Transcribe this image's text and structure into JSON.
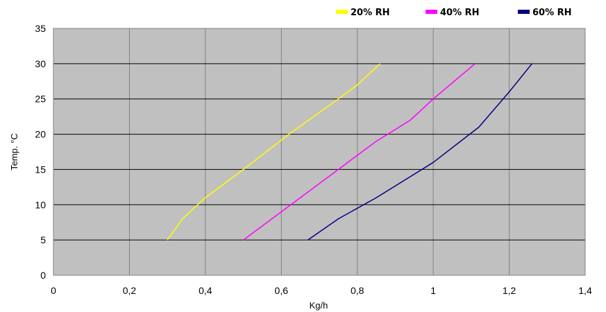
{
  "chart_data": {
    "type": "line",
    "title": "",
    "xlabel": "Kg/h",
    "ylabel": "Temp. °C",
    "xlim": [
      0,
      1.4
    ],
    "ylim": [
      0,
      35
    ],
    "x_ticks": [
      0,
      0.2,
      0.4,
      0.6,
      0.8,
      1,
      1.2,
      1.4
    ],
    "x_tick_labels": [
      "0",
      "0,2",
      "0,4",
      "0,6",
      "0,8",
      "1",
      "1,2",
      "1,4"
    ],
    "y_ticks": [
      0,
      5,
      10,
      15,
      20,
      25,
      30,
      35
    ],
    "y_tick_labels": [
      "0",
      "5",
      "10",
      "15",
      "20",
      "25",
      "30",
      "35"
    ],
    "grid": true,
    "plot_background": "#c0c0c0",
    "legend_position": "top-right",
    "series": [
      {
        "name": "20% RH",
        "color": "#ffff00",
        "points": [
          [
            0.3,
            5
          ],
          [
            0.34,
            8
          ],
          [
            0.4,
            11
          ],
          [
            0.5,
            15
          ],
          [
            0.62,
            20
          ],
          [
            0.75,
            25
          ],
          [
            0.8,
            27
          ],
          [
            0.86,
            30
          ]
        ]
      },
      {
        "name": "40% RH",
        "color": "#ff00ff",
        "points": [
          [
            0.5,
            5
          ],
          [
            0.6,
            9
          ],
          [
            0.75,
            15
          ],
          [
            0.85,
            19
          ],
          [
            0.94,
            22
          ],
          [
            1.0,
            25
          ],
          [
            1.11,
            30
          ]
        ]
      },
      {
        "name": "60% RH",
        "color": "#000080",
        "points": [
          [
            0.67,
            5
          ],
          [
            0.75,
            8
          ],
          [
            0.85,
            11
          ],
          [
            1.0,
            16
          ],
          [
            1.12,
            21
          ],
          [
            1.2,
            26
          ],
          [
            1.26,
            30
          ]
        ]
      }
    ]
  }
}
